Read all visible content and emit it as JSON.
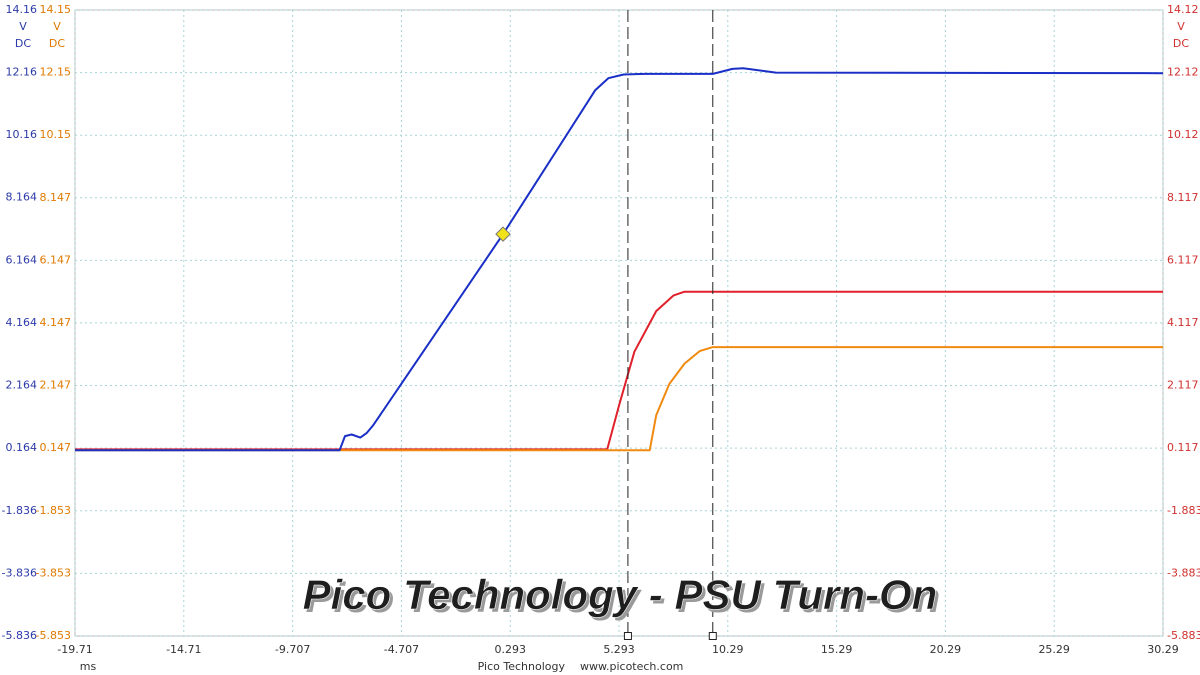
{
  "chart_data": {
    "type": "line",
    "title": "Pico Technology - PSU Turn-On",
    "footer": [
      "Pico Technology",
      "www.picotech.com"
    ],
    "axis_units": {
      "x": "ms",
      "y": [
        "V",
        "DC"
      ],
      "y2": [
        "V",
        "DC"
      ],
      "y3": [
        "V",
        "DC"
      ]
    },
    "xlim": [
      -19.71,
      30.29
    ],
    "xticks": [
      -19.71,
      -14.71,
      -9.707,
      -4.707,
      0.293,
      5.293,
      10.29,
      15.29,
      20.29,
      25.29,
      30.29
    ],
    "ylim": [
      -5.836,
      14.16
    ],
    "yticks": [
      14.16,
      12.16,
      10.16,
      8.164,
      6.164,
      4.164,
      2.164,
      0.164,
      -1.836,
      -3.836,
      -5.836
    ],
    "y2lim": [
      -5.853,
      14.15
    ],
    "y2ticks": [
      14.15,
      12.15,
      10.15,
      8.147,
      6.147,
      4.147,
      2.147,
      0.147,
      -1.853,
      -3.853,
      -5.853
    ],
    "y3lim": [
      -5.883,
      14.12
    ],
    "y3ticks": [
      14.12,
      12.12,
      10.12,
      8.117,
      6.117,
      4.117,
      2.117,
      0.117,
      -1.883,
      -3.883,
      -5.883
    ],
    "axis_colors": {
      "y": "#2b3aa8",
      "y2": "#e07a00",
      "y3": "#d03030"
    },
    "grid": true,
    "cursors": [
      5.7,
      9.6
    ],
    "series": [
      {
        "color": "#e0202a",
        "axis": "y3",
        "x": [
          -19.71,
          4.75,
          5.3,
          6.0,
          7.0,
          7.8,
          8.3,
          30.29
        ],
        "values": [
          0.08,
          0.08,
          1.5,
          3.2,
          4.5,
          5.0,
          5.12,
          5.12
        ]
      },
      {
        "color": "#f08a10",
        "axis": "y2",
        "x": [
          -19.71,
          6.7,
          7.0,
          7.6,
          8.3,
          9.0,
          9.6,
          30.29
        ],
        "values": [
          0.08,
          0.08,
          1.2,
          2.2,
          2.85,
          3.25,
          3.38,
          3.38
        ]
      },
      {
        "color": "#1a2fc6",
        "axis": "y",
        "x": [
          -19.71,
          -7.55,
          -7.3,
          -7.0,
          -6.6,
          -6.3,
          -6.0,
          -0.04,
          4.2,
          4.8,
          5.5,
          6.5,
          9.6,
          10.5,
          11.0,
          12.5,
          30.29
        ],
        "values": [
          0.1,
          0.1,
          0.55,
          0.6,
          0.5,
          0.65,
          0.9,
          7.0,
          11.6,
          11.98,
          12.1,
          12.12,
          12.12,
          12.28,
          12.3,
          12.16,
          12.14
        ]
      }
    ]
  }
}
